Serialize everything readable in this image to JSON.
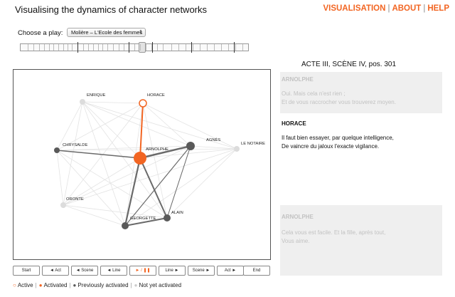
{
  "header": {
    "title": "Visualising the dynamics of character networks",
    "nav": [
      {
        "label": "VISUALISATION",
        "active": true
      },
      {
        "label": "ABOUT",
        "active": false
      },
      {
        "label": "HELP",
        "active": false
      }
    ],
    "nav_separator": "|"
  },
  "play_selector": {
    "label": "Choose a play:",
    "selected": "Molière – L'Ecole des femmes"
  },
  "timeline": {
    "position_fraction": 0.53
  },
  "scene": {
    "title": "ACTE III, SCÈNE IV, pos. 301"
  },
  "speeches": [
    {
      "speaker": "ARNOLPHE",
      "lines": [
        "Oui. Mais cela n'est rien ;",
        "Et de vous raccrocher vous trouverez moyen."
      ],
      "state": "faded"
    },
    {
      "speaker": "HORACE",
      "lines": [
        "Il faut bien essayer, par quelque intelligence,",
        "De vaincre du jaloux l'exacte vigilance."
      ],
      "state": "current"
    },
    {
      "speaker": "ARNOLPHE",
      "lines": [
        "Cela vous est facile. Et la fille, après tout,",
        "Vous aime."
      ],
      "state": "faded"
    }
  ],
  "network": {
    "colors": {
      "active": "#f26522",
      "previous": "#595959",
      "inactive": "#dcdcdc",
      "edge_light": "#e3e3e3",
      "edge_dark": "#6a6a6a"
    },
    "nodes": [
      {
        "id": "arnolphe",
        "label": "ARNOLPHE",
        "state": "active"
      },
      {
        "id": "horace",
        "label": "HORACE",
        "state": "active-outline"
      },
      {
        "id": "enrique",
        "label": "ENRIQUE",
        "state": "inactive"
      },
      {
        "id": "chrysalde",
        "label": "CHRYSALDE",
        "state": "previous"
      },
      {
        "id": "agnes",
        "label": "AGNÈS",
        "state": "previous"
      },
      {
        "id": "notaire",
        "label": "LE NOTAIRE",
        "state": "inactive"
      },
      {
        "id": "oronte",
        "label": "ORONTE",
        "state": "inactive"
      },
      {
        "id": "georgette",
        "label": "GEORGETTE",
        "state": "previous"
      },
      {
        "id": "alain",
        "label": "ALAIN",
        "state": "previous"
      }
    ]
  },
  "controls": [
    {
      "label": "Start",
      "name": "start-button"
    },
    {
      "label": "◄ Act",
      "name": "prev-act-button"
    },
    {
      "label": "◄ Scene",
      "name": "prev-scene-button"
    },
    {
      "label": "◄ Line",
      "name": "prev-line-button"
    },
    {
      "label": "► / ❚❚",
      "name": "play-pause-button"
    },
    {
      "label": "Line ►",
      "name": "next-line-button"
    },
    {
      "label": "Scene ►",
      "name": "next-scene-button"
    },
    {
      "label": "Act ►",
      "name": "next-act-button"
    },
    {
      "label": "End",
      "name": "end-button"
    }
  ],
  "legend": [
    {
      "icon": "○",
      "label": "Active",
      "color": "#f26522"
    },
    {
      "icon": "●",
      "label": "Activated",
      "color": "#f26522"
    },
    {
      "icon": "●",
      "label": "Previously activated",
      "color": "#595959"
    },
    {
      "icon": "●",
      "label": "Not yet activated",
      "color": "#cccccc"
    }
  ]
}
